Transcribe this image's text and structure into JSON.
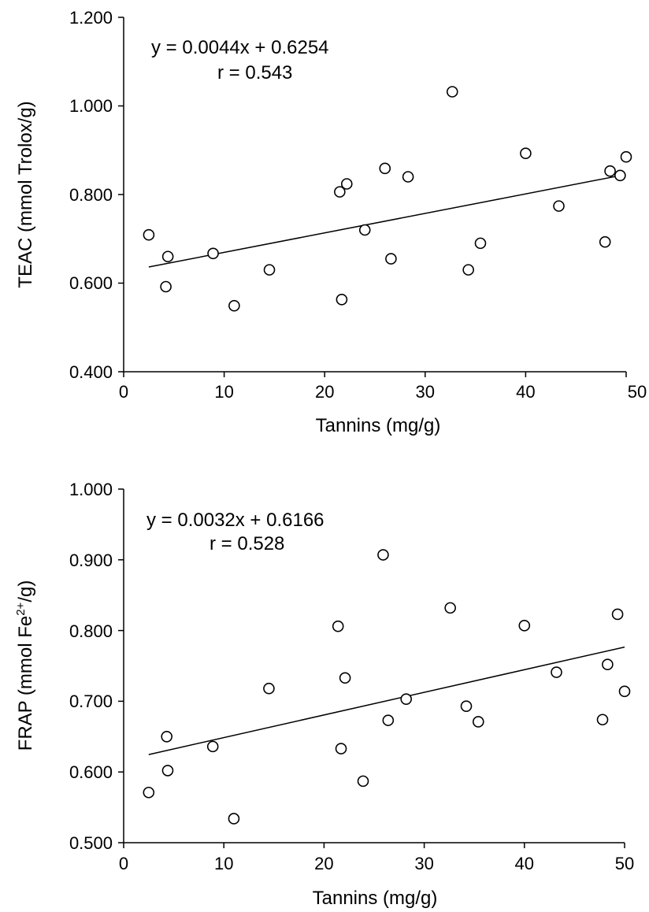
{
  "chart_data": [
    {
      "type": "scatter",
      "xlabel": "Tannins (mg/g)",
      "ylabel": "TEAC (mmol Trolox/g)",
      "xlim": [
        0,
        50
      ],
      "ylim": [
        0.4,
        1.2
      ],
      "x_ticks": [
        "0",
        "10",
        "20",
        "30",
        "40",
        "50"
      ],
      "y_ticks": [
        "0.400",
        "0.600",
        "0.800",
        "1.000",
        "1.200"
      ],
      "grid": false,
      "legend": "none",
      "annotations": [
        "y = 0.0044x + 0.6254",
        "r = 0.543"
      ],
      "trendline": {
        "slope": 0.0044,
        "intercept": 0.6254,
        "x_range": [
          2.5,
          49.5
        ]
      },
      "points": [
        {
          "x": 2.5,
          "y": 0.709
        },
        {
          "x": 4.2,
          "y": 0.592
        },
        {
          "x": 4.4,
          "y": 0.66
        },
        {
          "x": 8.9,
          "y": 0.667
        },
        {
          "x": 11.0,
          "y": 0.549
        },
        {
          "x": 14.5,
          "y": 0.63
        },
        {
          "x": 21.5,
          "y": 0.806
        },
        {
          "x": 21.7,
          "y": 0.563
        },
        {
          "x": 22.2,
          "y": 0.824
        },
        {
          "x": 24.0,
          "y": 0.72
        },
        {
          "x": 26.0,
          "y": 0.859
        },
        {
          "x": 26.6,
          "y": 0.655
        },
        {
          "x": 28.3,
          "y": 0.84
        },
        {
          "x": 32.7,
          "y": 1.032
        },
        {
          "x": 34.3,
          "y": 0.63
        },
        {
          "x": 35.5,
          "y": 0.69
        },
        {
          "x": 40.0,
          "y": 0.893
        },
        {
          "x": 43.3,
          "y": 0.774
        },
        {
          "x": 47.9,
          "y": 0.693
        },
        {
          "x": 48.4,
          "y": 0.853
        },
        {
          "x": 49.4,
          "y": 0.843
        },
        {
          "x": 50.0,
          "y": 0.885
        }
      ]
    },
    {
      "type": "scatter",
      "xlabel": "Tannins (mg/g)",
      "ylabel_main": "FRAP (mmol Fe",
      "ylabel_sup": "2+",
      "ylabel_tail": "/g)",
      "xlim": [
        0,
        50
      ],
      "ylim": [
        0.5,
        1.0
      ],
      "x_ticks": [
        "0",
        "10",
        "20",
        "30",
        "40",
        "50"
      ],
      "y_ticks": [
        "0.500",
        "0.600",
        "0.700",
        "0.800",
        "0.900",
        "1.000"
      ],
      "grid": false,
      "legend": "none",
      "annotations": [
        "y = 0.0032x + 0.6166",
        "r = 0.528"
      ],
      "trendline": {
        "slope": 0.0032,
        "intercept": 0.6166,
        "x_range": [
          2.5,
          50.0
        ]
      },
      "points": [
        {
          "x": 2.5,
          "y": 0.571
        },
        {
          "x": 4.3,
          "y": 0.65
        },
        {
          "x": 4.4,
          "y": 0.602
        },
        {
          "x": 8.9,
          "y": 0.636
        },
        {
          "x": 11.0,
          "y": 0.534
        },
        {
          "x": 14.5,
          "y": 0.718
        },
        {
          "x": 21.4,
          "y": 0.806
        },
        {
          "x": 21.7,
          "y": 0.633
        },
        {
          "x": 22.1,
          "y": 0.733
        },
        {
          "x": 23.9,
          "y": 0.587
        },
        {
          "x": 25.9,
          "y": 0.907
        },
        {
          "x": 26.4,
          "y": 0.673
        },
        {
          "x": 28.2,
          "y": 0.703
        },
        {
          "x": 32.6,
          "y": 0.832
        },
        {
          "x": 34.2,
          "y": 0.693
        },
        {
          "x": 35.4,
          "y": 0.671
        },
        {
          "x": 40.0,
          "y": 0.807
        },
        {
          "x": 43.2,
          "y": 0.741
        },
        {
          "x": 47.8,
          "y": 0.674
        },
        {
          "x": 48.3,
          "y": 0.752
        },
        {
          "x": 49.3,
          "y": 0.823
        },
        {
          "x": 50.0,
          "y": 0.714
        }
      ]
    }
  ]
}
